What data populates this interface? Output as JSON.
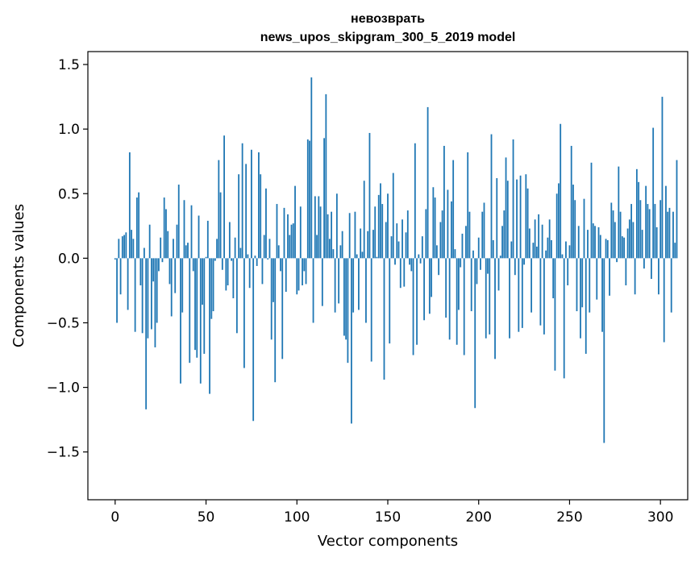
{
  "chart_data": {
    "type": "bar",
    "title_line1": "невозврать",
    "title_line2": "news_upos_skipgram_300_5_2019 model",
    "xlabel": "Vector components",
    "ylabel": "Components values",
    "xlim": [
      -15,
      315
    ],
    "ylim": [
      -1.87,
      1.6
    ],
    "x_ticks": [
      0,
      50,
      100,
      150,
      200,
      250,
      300
    ],
    "x_tick_labels": [
      "0",
      "50",
      "100",
      "150",
      "200",
      "250",
      "300"
    ],
    "y_ticks": [
      -1.5,
      -1.0,
      -0.5,
      0.0,
      0.5,
      1.0,
      1.5
    ],
    "y_tick_labels": [
      "−1.5",
      "−1.0",
      "−0.5",
      "0.0",
      "0.5",
      "1.0",
      "1.5"
    ],
    "bar_color": "#1f77b4",
    "values": [
      -0.01,
      -0.5,
      0.15,
      -0.28,
      0.17,
      0.18,
      0.2,
      -0.4,
      0.82,
      0.22,
      0.15,
      -0.57,
      0.47,
      0.51,
      -0.21,
      -0.58,
      0.08,
      -1.17,
      -0.62,
      0.26,
      -0.55,
      -0.18,
      -0.69,
      -0.5,
      -0.1,
      0.16,
      -0.03,
      0.47,
      0.38,
      0.21,
      -0.2,
      -0.45,
      0.15,
      -0.27,
      0.26,
      0.57,
      -0.97,
      -0.42,
      0.45,
      0.1,
      0.12,
      -0.81,
      0.41,
      -0.1,
      -0.71,
      -0.77,
      0.33,
      -0.97,
      -0.36,
      -0.74,
      0.01,
      0.29,
      -1.05,
      -0.47,
      -0.41,
      -0.02,
      0.15,
      0.76,
      0.51,
      -0.09,
      0.95,
      -0.25,
      -0.21,
      0.28,
      -0.02,
      -0.31,
      0.16,
      -0.58,
      0.65,
      0.08,
      0.89,
      -0.85,
      0.73,
      0.03,
      -0.23,
      0.84,
      -1.26,
      0.02,
      -0.06,
      0.82,
      0.65,
      -0.2,
      0.18,
      0.54,
      -0.01,
      0.15,
      -0.63,
      -0.34,
      -0.96,
      0.42,
      0.1,
      -0.1,
      -0.78,
      0.39,
      -0.26,
      0.34,
      0.18,
      0.26,
      0.27,
      0.56,
      -0.28,
      -0.25,
      0.4,
      -0.21,
      -0.1,
      -0.2,
      0.92,
      0.91,
      1.4,
      -0.5,
      0.48,
      0.18,
      0.48,
      0.4,
      -0.37,
      0.93,
      1.27,
      0.34,
      0.15,
      0.36,
      0.07,
      -0.42,
      0.5,
      -0.35,
      0.1,
      0.21,
      -0.6,
      -0.63,
      -0.81,
      0.35,
      -1.28,
      -0.42,
      0.36,
      0.03,
      -0.4,
      0.23,
      0.05,
      0.6,
      -0.5,
      0.21,
      0.97,
      -0.8,
      0.22,
      0.4,
      0.01,
      0.49,
      0.58,
      0.42,
      -0.94,
      0.28,
      0.5,
      -0.66,
      0.17,
      0.66,
      -0.05,
      0.27,
      0.13,
      -0.23,
      0.3,
      -0.22,
      0.2,
      0.37,
      -0.05,
      -0.1,
      -0.75,
      0.89,
      -0.67,
      0.03,
      -0.04,
      0.17,
      -0.48,
      0.38,
      1.17,
      -0.43,
      -0.3,
      0.55,
      0.47,
      0.1,
      -0.13,
      0.28,
      0.37,
      0.87,
      -0.46,
      0.53,
      -0.63,
      0.44,
      0.76,
      0.07,
      -0.67,
      -0.4,
      -0.07,
      0.19,
      -0.75,
      0.25,
      0.82,
      0.36,
      -0.41,
      0.06,
      -1.16,
      -0.2,
      0.16,
      -0.09,
      0.36,
      0.43,
      -0.62,
      -0.12,
      -0.59,
      0.96,
      0.14,
      -0.78,
      0.62,
      -0.25,
      0.02,
      0.25,
      0.37,
      0.78,
      0.6,
      -0.62,
      0.13,
      0.92,
      -0.13,
      0.61,
      -0.57,
      0.64,
      -0.54,
      -0.05,
      0.65,
      0.54,
      0.23,
      -0.42,
      0.12,
      0.3,
      0.09,
      0.34,
      -0.52,
      0.26,
      -0.59,
      0.06,
      0.16,
      0.3,
      0.14,
      -0.31,
      -0.87,
      0.5,
      0.58,
      1.04,
      0.03,
      -0.93,
      0.13,
      -0.21,
      0.1,
      0.87,
      0.57,
      0.45,
      -0.41,
      0.25,
      -0.62,
      -0.38,
      0.46,
      -0.74,
      0.22,
      -0.42,
      0.74,
      0.27,
      0.25,
      -0.32,
      0.24,
      0.18,
      -0.57,
      -1.43,
      0.15,
      0.14,
      -0.29,
      0.43,
      0.37,
      0.28,
      -0.03,
      0.71,
      0.36,
      0.17,
      0.16,
      -0.21,
      0.23,
      0.3,
      0.42,
      0.28,
      -0.28,
      0.69,
      0.59,
      0.45,
      0.22,
      -0.08,
      0.56,
      0.42,
      0.38,
      -0.16,
      1.01,
      0.42,
      0.24,
      -0.28,
      0.45,
      1.25,
      -0.65,
      0.56,
      0.36,
      0.39,
      -0.42,
      0.36,
      0.12,
      0.76
    ]
  }
}
